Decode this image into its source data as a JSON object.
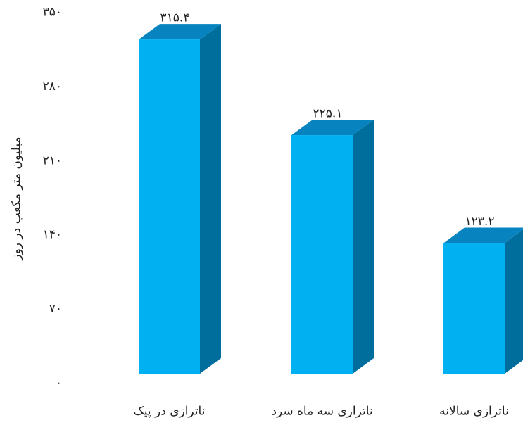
{
  "chart_data": {
    "type": "bar3d",
    "y_label": "میلیون متر مکعب در روز",
    "categories": [
      "ناترازی در پیک",
      "ناترازی سه ماه سرد",
      "ناترازی سالانه"
    ],
    "values": [
      315.4,
      225.1,
      123.2
    ],
    "value_labels": [
      "۳۱۵.۴",
      "۲۲۵.۱",
      "۱۲۳.۲"
    ],
    "color": "#00b0f0",
    "side_color": "#006e9c",
    "top_color": "#0784bf",
    "ylim": [
      0,
      350
    ],
    "yticks": [
      {
        "value": 0,
        "label": "۰"
      },
      {
        "value": 70,
        "label": "۷۰"
      },
      {
        "value": 140,
        "label": "۱۴۰"
      },
      {
        "value": 210,
        "label": "۲۱۰"
      },
      {
        "value": 280,
        "label": "۲۸۰"
      },
      {
        "value": 350,
        "label": "۳۵۰"
      }
    ],
    "grid": false
  }
}
